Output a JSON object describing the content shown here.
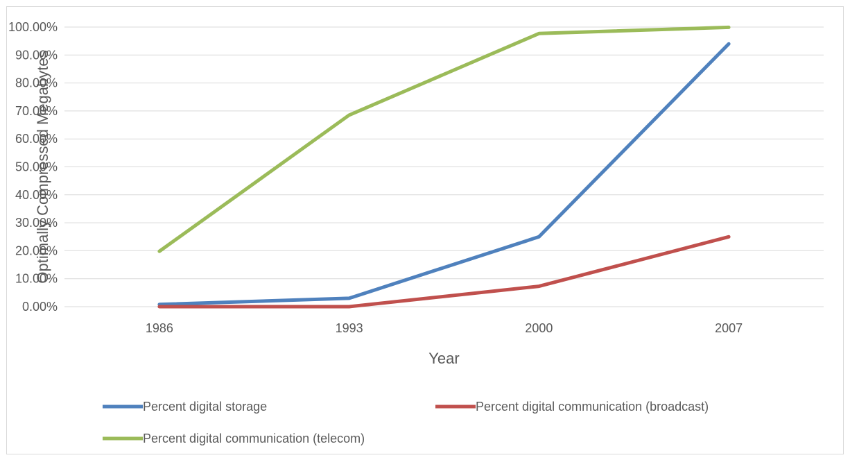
{
  "chart_data": {
    "type": "line",
    "title": "",
    "xlabel": "Year",
    "ylabel": "Optimally Compressed Megabytes",
    "categories": [
      "1986",
      "1993",
      "2000",
      "2007"
    ],
    "ylim": [
      0,
      1
    ],
    "y_ticks": [
      0,
      0.1,
      0.2,
      0.3,
      0.4,
      0.5,
      0.6,
      0.7,
      0.8,
      0.9,
      1.0
    ],
    "y_tick_labels": [
      "0.00%",
      "10.00%",
      "20.00%",
      "30.00%",
      "40.00%",
      "50.00%",
      "60.00%",
      "70.00%",
      "80.00%",
      "90.00%",
      "100.00%"
    ],
    "grid": true,
    "legend_position": "bottom",
    "series": [
      {
        "name": "Percent digital storage",
        "color": "#4f81bd",
        "values": [
          0.008,
          0.03,
          0.25,
          0.94
        ]
      },
      {
        "name": "Percent digital communication (broadcast)",
        "color": "#c0504d",
        "values": [
          0.0,
          0.0,
          0.073,
          0.25
        ]
      },
      {
        "name": "Percent digital communication (telecom)",
        "color": "#9bbb59",
        "values": [
          0.198,
          0.685,
          0.977,
          0.999
        ]
      }
    ]
  }
}
